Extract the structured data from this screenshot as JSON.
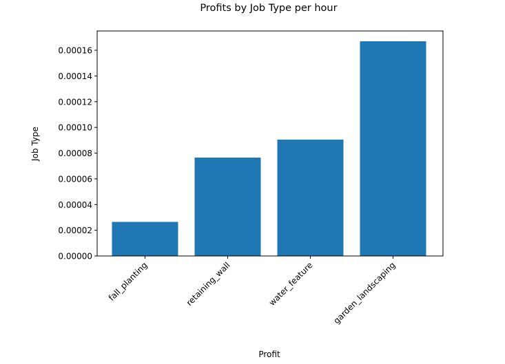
{
  "chart_data": {
    "type": "bar",
    "title": "Profits by Job Type per hour",
    "xlabel": "Profit",
    "ylabel": "Job Type",
    "categories": [
      "fall_planting",
      "retaining_wall",
      "water_feature",
      "garden_landscaping"
    ],
    "values": [
      2.65e-05,
      7.65e-05,
      9.05e-05,
      0.000167
    ],
    "ylim": [
      0,
      0.000175
    ],
    "yticks": [
      0.0,
      2e-05,
      4e-05,
      6e-05,
      8e-05,
      0.0001,
      0.00012,
      0.00014,
      0.00016
    ],
    "ytick_labels": [
      "0.00000",
      "0.00002",
      "0.00004",
      "0.00006",
      "0.00008",
      "0.00010",
      "0.00012",
      "0.00014",
      "0.00016"
    ],
    "bar_color": "#1f77b4",
    "grid": false,
    "legend": "none"
  }
}
